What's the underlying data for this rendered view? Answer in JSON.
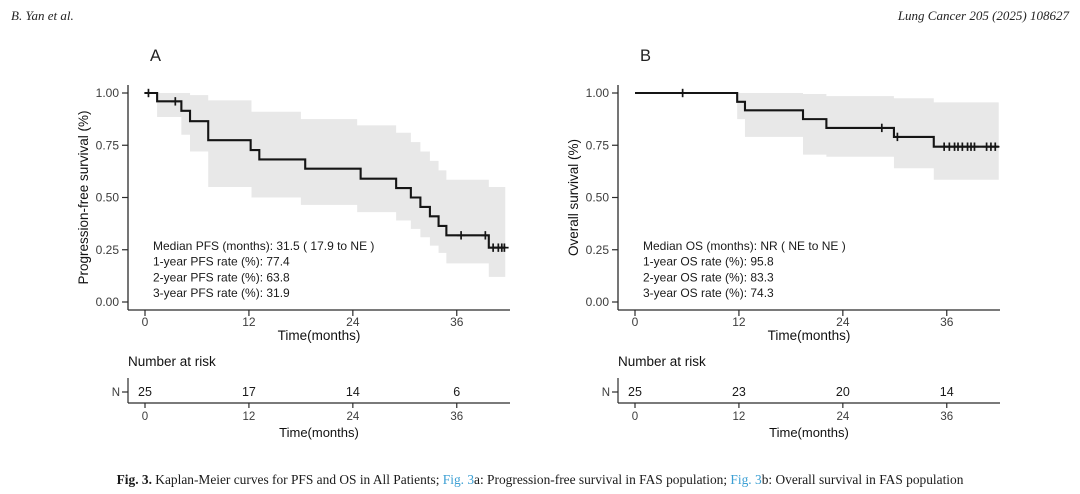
{
  "page": {
    "header_left": "B. Yan et al.",
    "header_right": "Lung Cancer 205 (2025) 108627"
  },
  "colors": {
    "curve": "#151515",
    "confidence_band": "#e8e8e8",
    "axis": "#2b2b2b",
    "link_blue": "#3b9fd3"
  },
  "caption": {
    "label": "Fig. 3.",
    "segments": [
      {
        "text": " Kaplan-Meier curves for PFS and OS in All Patients; ",
        "style": "normal"
      },
      {
        "text": "Fig. 3",
        "style": "link"
      },
      {
        "text": "a: Progression-free survival in FAS population; ",
        "style": "normal"
      },
      {
        "text": "Fig. 3",
        "style": "link"
      },
      {
        "text": "b: Overall survival in FAS population",
        "style": "normal"
      }
    ]
  },
  "chart_data": [
    {
      "type": "line",
      "subtype": "kaplan-meier-step",
      "panel_label": "A",
      "title": "",
      "ylabel": "Progression-free survival (%)",
      "xlabel": "Time(months)",
      "xticks": [
        0,
        12,
        24,
        36
      ],
      "yticks": [
        0,
        0.25,
        0.5,
        0.75,
        1
      ],
      "ytick_labels": [
        "0.00",
        "0.25",
        "0.50",
        "0.75",
        "1.00"
      ],
      "xlim": [
        0,
        42
      ],
      "ylim": [
        0,
        1
      ],
      "grid": false,
      "legend": "none",
      "annotation": [
        "Median PFS (months): 31.5 ( 17.9 to NE )",
        "1-year PFS rate (%): 77.4",
        "2-year PFS rate (%): 63.8",
        "3-year PFS rate (%): 31.9"
      ],
      "steps": [
        [
          0,
          1.0
        ],
        [
          1.4,
          0.96
        ],
        [
          4.2,
          0.915
        ],
        [
          5.2,
          0.865
        ],
        [
          7.3,
          0.774
        ],
        [
          12.2,
          0.727
        ],
        [
          13.2,
          0.682
        ],
        [
          18.5,
          0.638
        ],
        [
          24.9,
          0.59
        ],
        [
          29.0,
          0.545
        ],
        [
          30.7,
          0.5
        ],
        [
          31.8,
          0.455
        ],
        [
          32.9,
          0.41
        ],
        [
          33.9,
          0.364
        ],
        [
          34.8,
          0.319
        ],
        [
          39.7,
          0.26
        ]
      ],
      "end_time": 41.6,
      "censors": [
        [
          0.4,
          1.0
        ],
        [
          3.5,
          0.96
        ],
        [
          36.5,
          0.319
        ],
        [
          39.3,
          0.319
        ],
        [
          40.2,
          0.26
        ],
        [
          40.8,
          0.26
        ],
        [
          41.2,
          0.26
        ],
        [
          41.5,
          0.26
        ]
      ],
      "band": [
        [
          1.4,
          0.885,
          1.0
        ],
        [
          4.2,
          0.8,
          1.0
        ],
        [
          5.2,
          0.72,
          0.99
        ],
        [
          7.3,
          0.55,
          0.965
        ],
        [
          12.3,
          0.5,
          0.91
        ],
        [
          18.0,
          0.465,
          0.875
        ],
        [
          24.5,
          0.43,
          0.845
        ],
        [
          29.0,
          0.39,
          0.81
        ],
        [
          30.7,
          0.35,
          0.765
        ],
        [
          31.8,
          0.31,
          0.72
        ],
        [
          32.9,
          0.27,
          0.675
        ],
        [
          33.9,
          0.235,
          0.63
        ],
        [
          34.8,
          0.185,
          0.585
        ],
        [
          39.7,
          0.12,
          0.55
        ]
      ],
      "risk_table": {
        "title": "Number at risk",
        "row_label": "N",
        "times": [
          0,
          12,
          24,
          36
        ],
        "counts": [
          "25",
          "17",
          "14",
          "6"
        ],
        "xlabel": "Time(months)"
      }
    },
    {
      "type": "line",
      "subtype": "kaplan-meier-step",
      "panel_label": "B",
      "title": "",
      "ylabel": "Overall survival (%)",
      "xlabel": "Time(months)",
      "xticks": [
        0,
        12,
        24,
        36
      ],
      "yticks": [
        0,
        0.25,
        0.5,
        0.75,
        1
      ],
      "ytick_labels": [
        "0.00",
        "0.25",
        "0.50",
        "0.75",
        "1.00"
      ],
      "xlim": [
        0,
        42
      ],
      "ylim": [
        0,
        1
      ],
      "grid": false,
      "legend": "none",
      "annotation": [
        "Median OS (months): NR ( NE to NE )",
        "1-year OS rate (%): 95.8",
        "2-year OS rate (%): 83.3",
        "3-year OS rate (%): 74.3"
      ],
      "steps": [
        [
          0,
          1.0
        ],
        [
          11.8,
          0.958
        ],
        [
          12.7,
          0.917
        ],
        [
          19.4,
          0.875
        ],
        [
          22.1,
          0.833
        ],
        [
          29.9,
          0.79
        ],
        [
          34.5,
          0.743
        ]
      ],
      "end_time": 42,
      "censors": [
        [
          5.5,
          1.0
        ],
        [
          28.5,
          0.833
        ],
        [
          30.3,
          0.79
        ],
        [
          35.7,
          0.743
        ],
        [
          36.3,
          0.743
        ],
        [
          36.9,
          0.743
        ],
        [
          37.3,
          0.743
        ],
        [
          37.8,
          0.743
        ],
        [
          38.4,
          0.743
        ],
        [
          38.8,
          0.743
        ],
        [
          39.2,
          0.743
        ],
        [
          40.6,
          0.743
        ],
        [
          41.1,
          0.743
        ],
        [
          41.6,
          0.743
        ]
      ],
      "band": [
        [
          11.8,
          0.875,
          1.0
        ],
        [
          12.7,
          0.79,
          1.0
        ],
        [
          19.4,
          0.705,
          0.995
        ],
        [
          22.1,
          0.695,
          0.985
        ],
        [
          29.9,
          0.64,
          0.975
        ],
        [
          34.5,
          0.585,
          0.955
        ]
      ],
      "risk_table": {
        "title": "Number at risk",
        "row_label": "N",
        "times": [
          0,
          12,
          24,
          36
        ],
        "counts": [
          "25",
          "23",
          "20",
          "14"
        ],
        "xlabel": "Time(months)"
      }
    }
  ]
}
